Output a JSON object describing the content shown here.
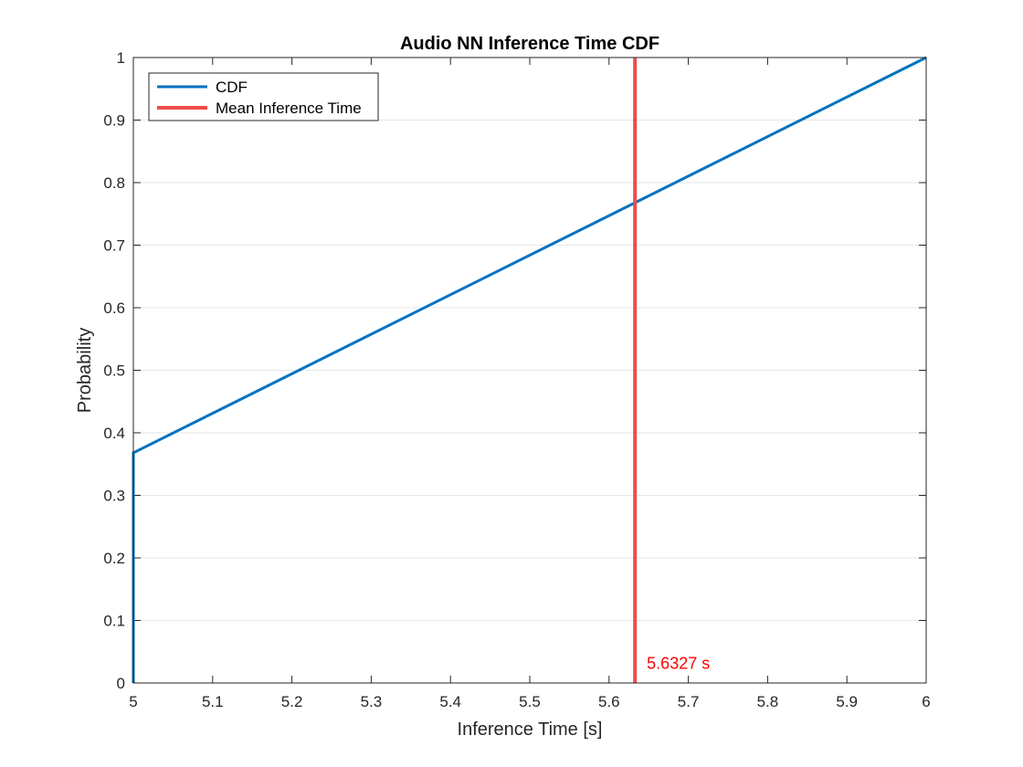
{
  "chart_data": {
    "type": "line",
    "title": "Audio NN Inference Time CDF",
    "xlabel": "Inference Time [s]",
    "ylabel": "Probability",
    "xlim": [
      5,
      6
    ],
    "ylim": [
      0,
      1
    ],
    "xticks": [
      5,
      5.1,
      5.2,
      5.3,
      5.4,
      5.5,
      5.6,
      5.7,
      5.8,
      5.9,
      6
    ],
    "xtick_labels": [
      "5",
      "5.1",
      "5.2",
      "5.3",
      "5.4",
      "5.5",
      "5.6",
      "5.7",
      "5.8",
      "5.9",
      "6"
    ],
    "yticks": [
      0,
      0.1,
      0.2,
      0.3,
      0.4,
      0.5,
      0.6,
      0.7,
      0.8,
      0.9,
      1
    ],
    "ytick_labels": [
      "0",
      "0.1",
      "0.2",
      "0.3",
      "0.4",
      "0.5",
      "0.6",
      "0.7",
      "0.8",
      "0.9",
      "1"
    ],
    "grid": "horizontal",
    "legend_position": "top-left",
    "series": [
      {
        "name": "CDF",
        "color": "#0072BD",
        "x": [
          5,
          5,
          6
        ],
        "y": [
          0,
          0.368,
          1
        ]
      }
    ],
    "vertical_lines": [
      {
        "name": "Mean Inference Time",
        "x": 5.6327,
        "color": "#F04B4B"
      }
    ],
    "annotations": [
      {
        "text": "5.6327 s",
        "x": 5.6327,
        "y": 0.02,
        "color": "#FF0000"
      }
    ]
  }
}
